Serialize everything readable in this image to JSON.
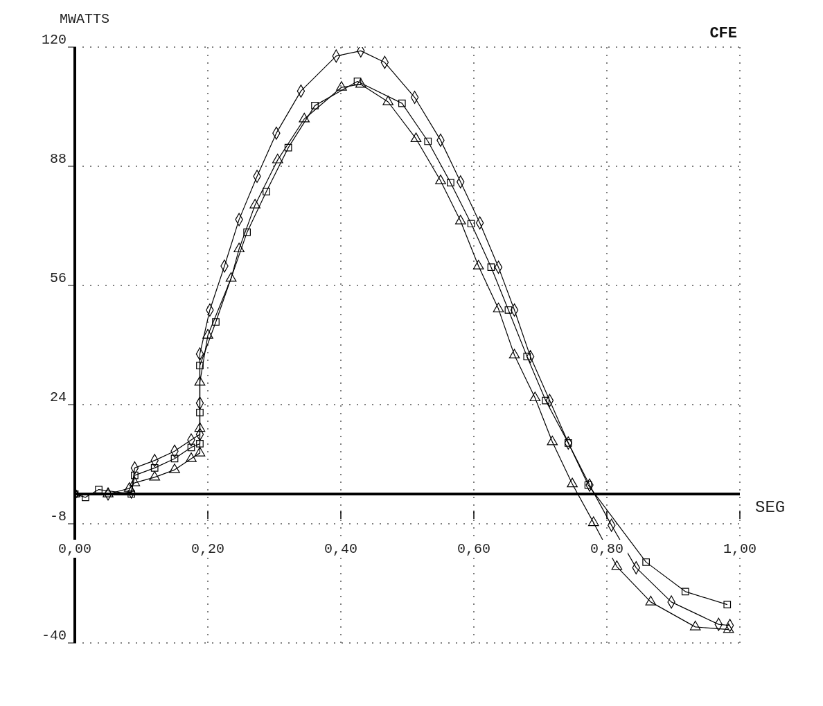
{
  "chart_data": {
    "type": "line",
    "title": "CFE",
    "xlabel": "SEG",
    "ylabel": "MWATTS",
    "xlim": [
      0,
      1
    ],
    "xticks": [
      {
        "value": 0,
        "label": "0,00"
      },
      {
        "value": 0.2,
        "label": "0,20"
      },
      {
        "value": 0.4,
        "label": "0,40"
      },
      {
        "value": 0.6,
        "label": "0,60"
      },
      {
        "value": 0.8,
        "label": "0,80"
      },
      {
        "value": 1,
        "label": "1,00"
      }
    ],
    "ylim": [
      -40,
      120
    ],
    "yticks": [
      -40,
      -8,
      24,
      56,
      88,
      120
    ],
    "grid": true,
    "line_style": "solid",
    "ref_lines": [
      {
        "axis": "y",
        "value": 0,
        "color": "#000000"
      }
    ],
    "series": [
      {
        "color": "#000000",
        "marker": "diamond",
        "x": [
          0,
          0.05,
          0.085,
          0.09,
          0.12,
          0.15,
          0.175,
          0.188,
          0.188,
          0.188,
          0.203,
          0.225,
          0.247,
          0.274,
          0.303,
          0.34,
          0.393,
          0.43,
          0.466,
          0.511,
          0.55,
          0.58,
          0.609,
          0.637,
          0.661,
          0.685,
          0.714,
          0.742,
          0.774,
          0.807,
          0.844,
          0.897,
          0.968,
          0.985
        ],
        "values": [
          0,
          0,
          0.5,
          7,
          9,
          11.5,
          14.5,
          16,
          24.4,
          37.6,
          49.4,
          61.2,
          73.7,
          85.3,
          96.9,
          108.2,
          117.6,
          119,
          115.9,
          106.5,
          95,
          83.8,
          72.8,
          60.9,
          49.4,
          36.9,
          25.1,
          13.7,
          2.4,
          -8.4,
          -19.8,
          -29,
          -35,
          -35.3
        ]
      },
      {
        "color": "#000000",
        "marker": "square",
        "x": [
          0,
          0.016,
          0.036,
          0.085,
          0.09,
          0.12,
          0.15,
          0.175,
          0.188,
          0.188,
          0.188,
          0.212,
          0.259,
          0.288,
          0.321,
          0.361,
          0.425,
          0.492,
          0.531,
          0.565,
          0.596,
          0.626,
          0.652,
          0.68,
          0.708,
          0.742,
          0.772,
          0.859,
          0.918,
          0.981
        ],
        "values": [
          0,
          -0.9,
          1.2,
          0,
          5,
          7,
          9.5,
          12.5,
          13.5,
          21.9,
          34.5,
          46.2,
          70.3,
          81.2,
          93,
          104.3,
          110.8,
          104.9,
          94.7,
          83.6,
          72.6,
          60.9,
          49.4,
          36.9,
          25.1,
          13.7,
          2.4,
          -18.3,
          -26.2,
          -29.7
        ]
      },
      {
        "color": "#000000",
        "marker": "triangle",
        "x": [
          0,
          0.05,
          0.082,
          0.09,
          0.12,
          0.15,
          0.175,
          0.188,
          0.188,
          0.188,
          0.2,
          0.235,
          0.247,
          0.271,
          0.305,
          0.345,
          0.401,
          0.43,
          0.471,
          0.513,
          0.55,
          0.58,
          0.607,
          0.637,
          0.661,
          0.692,
          0.718,
          0.748,
          0.78,
          0.815,
          0.866,
          0.933,
          0.983
        ],
        "values": [
          0,
          0,
          1.5,
          3,
          4.5,
          6.5,
          9.5,
          11,
          17.6,
          30,
          42.6,
          57.9,
          65.8,
          77.6,
          89.7,
          100.7,
          109.2,
          110,
          105.3,
          95.4,
          84.1,
          73.3,
          61.2,
          49.7,
          37.3,
          25.8,
          14,
          2.7,
          -7.7,
          -19.5,
          -29,
          -35.7,
          -36.4
        ]
      }
    ]
  }
}
